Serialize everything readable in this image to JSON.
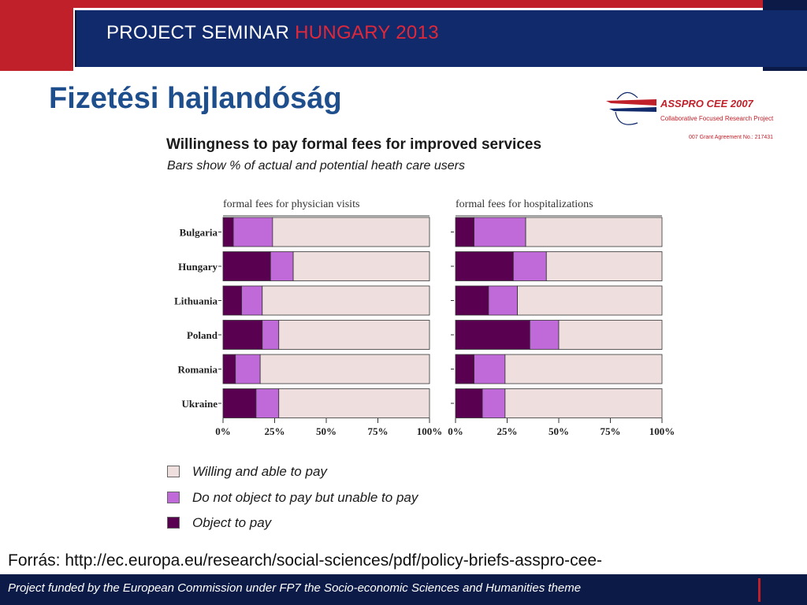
{
  "header": {
    "title_part1": "PROJECT SEMINAR ",
    "title_part2": "HUNGARY 2013"
  },
  "slide": {
    "title": "Fizetési hajlandóság"
  },
  "logo": {
    "name": "ASSPRO CEE 2007",
    "subtitle": "Collaborative Focused Research Project",
    "grant": "007 Grant Agreement No.: 217431"
  },
  "colors": {
    "object": "#5a0050",
    "unable": "#c06ad9",
    "willing": "#eedede",
    "header_bg": "#112a6b",
    "accent_red": "#c0202a",
    "title_blue": "#1f4e8c"
  },
  "chart_data": {
    "type": "bar",
    "stacked": true,
    "orientation": "horizontal",
    "title": "Willingness to pay formal fees for improved services",
    "subtitle": "Bars show % of actual and potential heath care users",
    "categories": [
      "Bulgaria",
      "Hungary",
      "Lithuania",
      "Poland",
      "Romania",
      "Ukraine"
    ],
    "xlim": [
      0,
      100
    ],
    "ticks": [
      "0%",
      "25%",
      "50%",
      "75%",
      "100%"
    ],
    "legend": [
      {
        "label": "Willing and able to pay",
        "color_key": "willing"
      },
      {
        "label": "Do not object to pay but unable to pay",
        "color_key": "unable"
      },
      {
        "label": "Object to pay",
        "color_key": "object"
      }
    ],
    "panels": [
      {
        "title": "formal fees for physician visits",
        "series": [
          {
            "name": "Object to pay",
            "values": [
              5,
              23,
              9,
              19,
              6,
              16
            ]
          },
          {
            "name": "Do not object to pay but unable to pay",
            "values": [
              19,
              11,
              10,
              8,
              12,
              11
            ]
          },
          {
            "name": "Willing and able to pay",
            "values": [
              76,
              66,
              81,
              73,
              82,
              73
            ]
          }
        ]
      },
      {
        "title": "formal fees for hospitalizations",
        "series": [
          {
            "name": "Object to pay",
            "values": [
              9,
              28,
              16,
              36,
              9,
              13
            ]
          },
          {
            "name": "Do not object to pay but unable to pay",
            "values": [
              25,
              16,
              14,
              14,
              15,
              11
            ]
          },
          {
            "name": "Willing and able to pay",
            "values": [
              66,
              56,
              70,
              50,
              76,
              76
            ]
          }
        ]
      }
    ]
  },
  "source": "Forrás: http://ec.europa.eu/research/social-sciences/pdf/policy-briefs-asspro-cee-",
  "footer": "Project funded by the European Commission under FP7 the Socio-economic Sciences and Humanities theme"
}
